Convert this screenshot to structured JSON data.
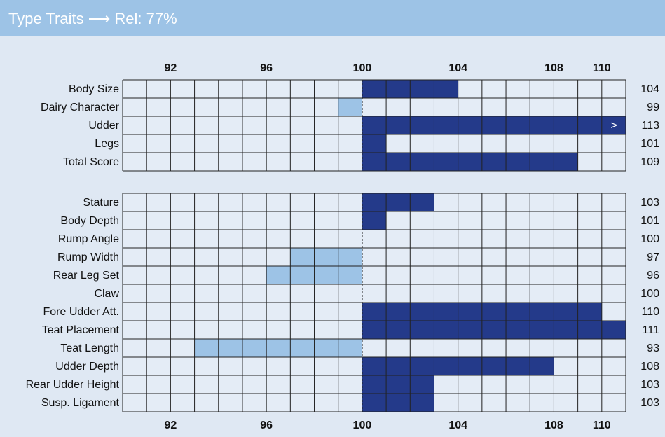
{
  "chart_data": {
    "type": "bar",
    "title": "Type Traits ⟶ Rel: 77%",
    "xlim": [
      90,
      111
    ],
    "xticks": [
      92,
      96,
      100,
      104,
      108,
      110
    ],
    "grid_step": 1,
    "baseline": 100,
    "colors": {
      "above": "#243a8a",
      "below": "#9dc3e6"
    },
    "overflow_marker": ">",
    "groups": [
      {
        "categories": [
          "Body Size",
          "Dairy Character",
          "Udder",
          "Legs",
          "Total Score"
        ],
        "values": [
          104,
          99,
          113,
          101,
          109
        ]
      },
      {
        "categories": [
          "Stature",
          "Body Depth",
          "Rump Angle",
          "Rump Width",
          "Rear Leg Set",
          "Claw",
          "Fore Udder Att.",
          "Teat Placement",
          "Teat Length",
          "Udder Depth",
          "Rear Udder Height",
          "Susp. Ligament"
        ],
        "values": [
          103,
          101,
          100,
          97,
          96,
          100,
          110,
          111,
          93,
          108,
          103,
          103
        ]
      }
    ]
  }
}
